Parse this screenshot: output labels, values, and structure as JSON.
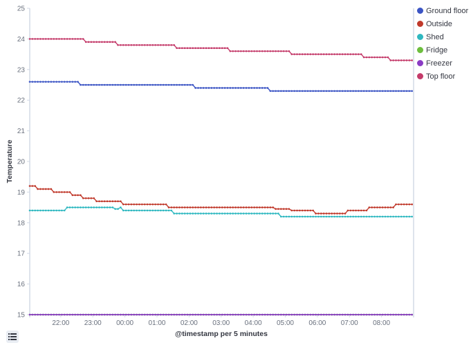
{
  "chart_data": {
    "type": "line",
    "title": "",
    "xlabel": "@timestamp per 5 minutes",
    "ylabel": "Temperature",
    "ylim": [
      15,
      25
    ],
    "yticks": [
      15,
      16,
      17,
      18,
      19,
      20,
      21,
      22,
      23,
      24,
      25
    ],
    "xticks": [
      "22:00",
      "23:00",
      "00:00",
      "01:00",
      "02:00",
      "03:00",
      "04:00",
      "05:00",
      "06:00",
      "07:00",
      "08:00"
    ],
    "x_range": [
      "21:02",
      "09:00"
    ],
    "interval": "5 minutes",
    "grid": false,
    "legend_position": "right",
    "series": [
      {
        "name": "Ground floor",
        "color": "#3b54c4",
        "steps": [
          [
            "21:02",
            22.6
          ],
          [
            "22:35",
            22.5
          ],
          [
            "02:10",
            22.4
          ],
          [
            "04:30",
            22.3
          ],
          [
            "09:00",
            22.3
          ]
        ]
      },
      {
        "name": "Outside",
        "color": "#c0392b",
        "steps": [
          [
            "21:02",
            19.2
          ],
          [
            "21:15",
            19.1
          ],
          [
            "21:45",
            19.0
          ],
          [
            "22:20",
            18.9
          ],
          [
            "22:40",
            18.8
          ],
          [
            "23:05",
            18.7
          ],
          [
            "23:55",
            18.6
          ],
          [
            "01:20",
            18.5
          ],
          [
            "04:40",
            18.45
          ],
          [
            "05:10",
            18.4
          ],
          [
            "05:55",
            18.3
          ],
          [
            "06:55",
            18.4
          ],
          [
            "07:35",
            18.5
          ],
          [
            "08:25",
            18.6
          ],
          [
            "09:00",
            18.6
          ]
        ]
      },
      {
        "name": "Shed",
        "color": "#2fb8c0",
        "steps": [
          [
            "21:02",
            18.4
          ],
          [
            "22:10",
            18.5
          ],
          [
            "23:40",
            18.45
          ],
          [
            "23:50",
            18.5
          ],
          [
            "23:55",
            18.4
          ],
          [
            "01:30",
            18.3
          ],
          [
            "04:50",
            18.2
          ],
          [
            "09:00",
            18.2
          ]
        ]
      },
      {
        "name": "Fridge",
        "color": "#6dbe3e",
        "steps": [
          [
            "21:02",
            15.0
          ],
          [
            "09:00",
            15.0
          ]
        ]
      },
      {
        "name": "Freezer",
        "color": "#8a3bc4",
        "steps": [
          [
            "21:02",
            15.0
          ],
          [
            "09:00",
            15.0
          ]
        ]
      },
      {
        "name": "Top floor",
        "color": "#c43b6a",
        "steps": [
          [
            "21:02",
            24.0
          ],
          [
            "22:47",
            23.9
          ],
          [
            "23:45",
            23.8
          ],
          [
            "01:35",
            23.7
          ],
          [
            "03:13",
            23.6
          ],
          [
            "05:10",
            23.5
          ],
          [
            "07:25",
            23.4
          ],
          [
            "08:17",
            23.3
          ],
          [
            "09:00",
            23.3
          ]
        ]
      }
    ]
  },
  "legend": {
    "items": [
      {
        "label": "Ground floor",
        "color": "#3b54c4"
      },
      {
        "label": "Outside",
        "color": "#c0392b"
      },
      {
        "label": "Shed",
        "color": "#2fb8c0"
      },
      {
        "label": "Fridge",
        "color": "#6dbe3e"
      },
      {
        "label": "Freezer",
        "color": "#8a3bc4"
      },
      {
        "label": "Top floor",
        "color": "#c43b6a"
      }
    ]
  },
  "controls": {
    "legend_toggle_icon": "list-icon"
  }
}
